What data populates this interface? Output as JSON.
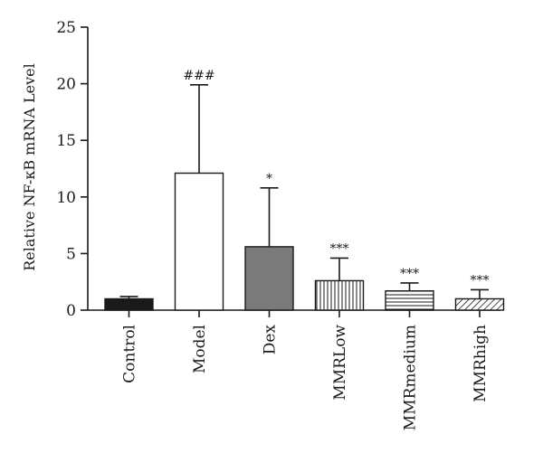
{
  "chart_data": {
    "type": "bar",
    "title": "",
    "xlabel": "",
    "ylabel": "Relative NF-κB mRNA Level",
    "ylim": [
      0,
      25
    ],
    "yticks": [
      0,
      5,
      10,
      15,
      20,
      25
    ],
    "grid": false,
    "categories": [
      "Control",
      "Model",
      "Dex",
      "MMRLow",
      "MMRmedium",
      "MMRhigh"
    ],
    "values": [
      1.0,
      12.1,
      5.6,
      2.6,
      1.7,
      1.0
    ],
    "errors": [
      0.2,
      7.8,
      5.2,
      2.0,
      0.7,
      0.8
    ],
    "significance": [
      "",
      "###",
      "*",
      "***",
      "***",
      "***"
    ],
    "fills": [
      "solid-black",
      "white",
      "solid-gray",
      "vertical-stripes",
      "horizontal-stripes",
      "diagonal-stripes"
    ],
    "colors": {
      "black": "#1a1a1a",
      "gray": "#7a7a7a",
      "white": "#ffffff"
    }
  }
}
